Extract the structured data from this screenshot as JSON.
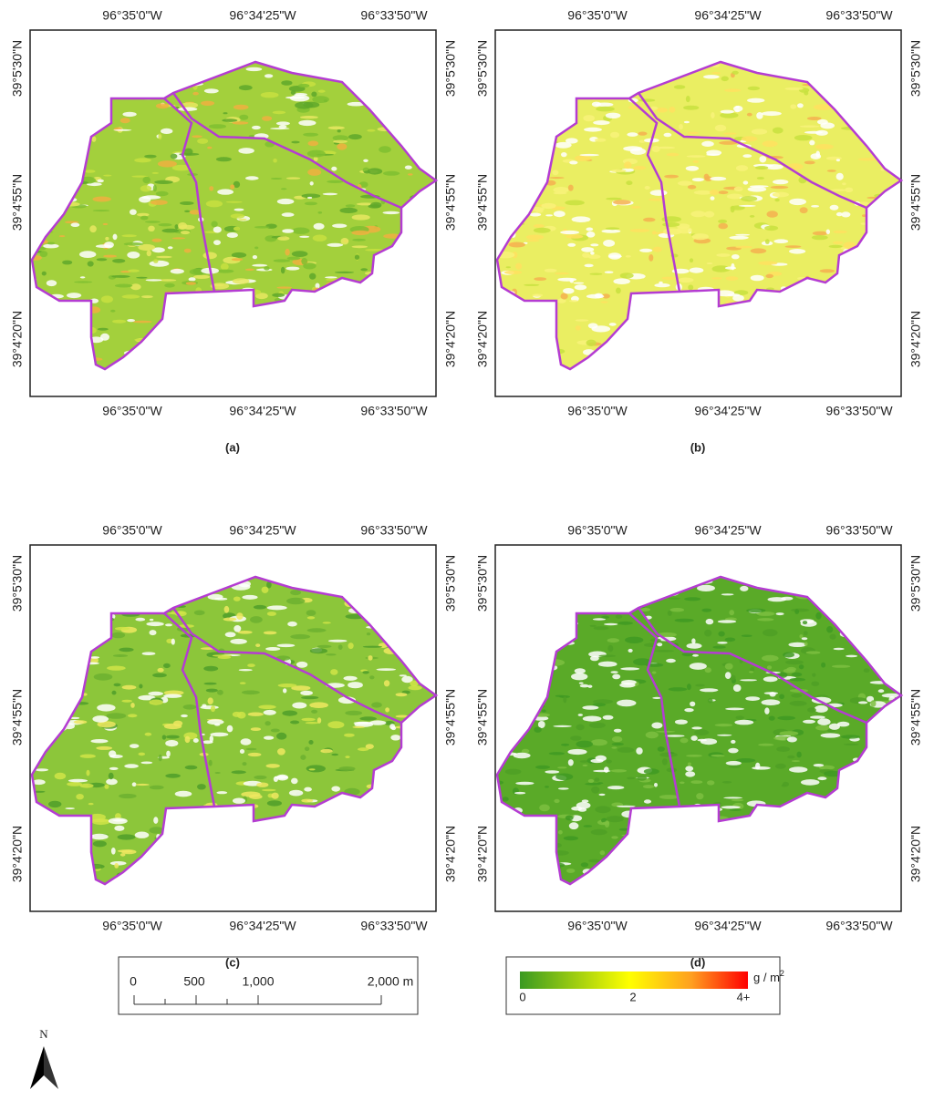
{
  "panels": [
    {
      "label": "(a)"
    },
    {
      "label": "(b)"
    },
    {
      "label": "(c)"
    },
    {
      "label": "(d)"
    }
  ],
  "axes": {
    "lon": [
      "96°35'0\"W",
      "96°34'25\"W",
      "96°33'50\"W"
    ],
    "lat": [
      "39°5'30\"N",
      "39°4'55\"N",
      "39°4'20\"N"
    ]
  },
  "north_arrow": {
    "label": "N"
  },
  "scale_bar": {
    "labels": [
      "0",
      "500",
      "1,000",
      "2,000 m"
    ]
  },
  "legend": {
    "unit": "g / m",
    "unit_superscript": "2",
    "labels": [
      "0",
      "2",
      "4+"
    ]
  }
}
